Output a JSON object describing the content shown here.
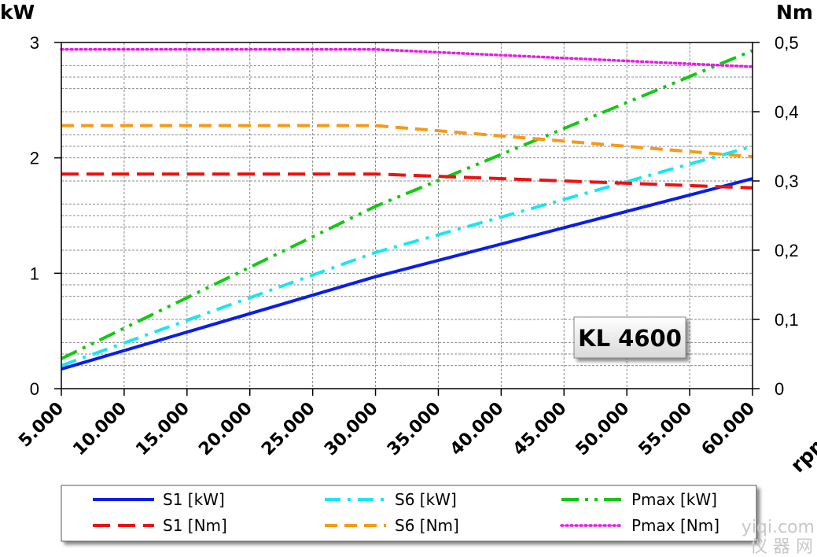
{
  "chart_data": {
    "type": "line",
    "ylabel_left": "kW",
    "ylabel_right": "Nm",
    "xlabel": "rpm",
    "x_range": [
      5000,
      60000
    ],
    "y_left_range": [
      0,
      3
    ],
    "y_right_range": [
      0,
      0.5
    ],
    "x_ticks": [
      "5.000",
      "10.000",
      "15.000",
      "20.000",
      "25.000",
      "30.000",
      "35.000",
      "40.000",
      "45.000",
      "50.000",
      "55.000",
      "60.000"
    ],
    "x_tick_values": [
      5000,
      10000,
      15000,
      20000,
      25000,
      30000,
      35000,
      40000,
      45000,
      50000,
      55000,
      60000
    ],
    "y_left_ticks": [
      "0",
      "1",
      "2",
      "3"
    ],
    "y_left_tick_values": [
      0,
      1,
      2,
      3
    ],
    "y_right_ticks": [
      "0",
      "0,1",
      "0,2",
      "0,3",
      "0,4",
      "0,5"
    ],
    "y_right_tick_values": [
      0,
      0.1,
      0.2,
      0.3,
      0.4,
      0.5
    ],
    "grid": true,
    "legend_position": "bottom",
    "annotation": "KL 4600",
    "series": [
      {
        "name": "S1 [kW]",
        "axis": "left",
        "color": "#0a1ee6",
        "style": "solid",
        "x": [
          5000,
          30000,
          60000
        ],
        "y": [
          0.17,
          0.97,
          1.82
        ]
      },
      {
        "name": "S6 [kW]",
        "axis": "left",
        "color": "#19e6f0",
        "style": "dashdot",
        "x": [
          5000,
          30000,
          60000
        ],
        "y": [
          0.2,
          1.18,
          2.1
        ]
      },
      {
        "name": "Pmax [kW]",
        "axis": "left",
        "color": "#14c814",
        "style": "dashdotdot",
        "x": [
          5000,
          30000,
          60000
        ],
        "y": [
          0.26,
          1.58,
          2.93
        ]
      },
      {
        "name": "S1 [Nm]",
        "axis": "right",
        "color": "#ee1111",
        "style": "longdash",
        "x": [
          5000,
          30000,
          60000
        ],
        "y": [
          0.31,
          0.31,
          0.29
        ]
      },
      {
        "name": "S6 [Nm]",
        "axis": "right",
        "color": "#f59a19",
        "style": "dash",
        "x": [
          5000,
          30000,
          60000
        ],
        "y": [
          0.38,
          0.38,
          0.335
        ]
      },
      {
        "name": "Pmax [Nm]",
        "axis": "right",
        "color": "#e61ee6",
        "style": "dotted",
        "x": [
          5000,
          30000,
          60000
        ],
        "y": [
          0.49,
          0.49,
          0.465
        ]
      }
    ]
  },
  "watermark": {
    "line1": "yiqi.com",
    "line2": "仪 器 网"
  }
}
